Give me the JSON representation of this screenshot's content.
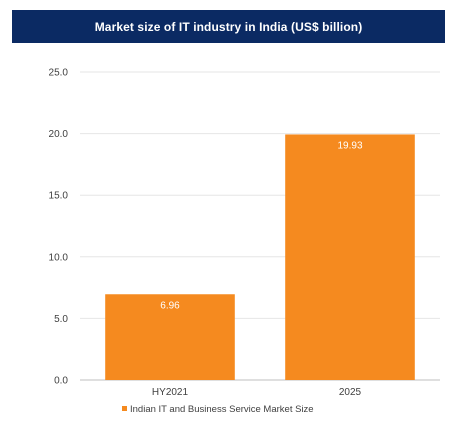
{
  "chart_data": {
    "type": "bar",
    "title": "Market size of IT industry in India (US$ billion)",
    "categories": [
      "HY2021",
      "2025"
    ],
    "series": [
      {
        "name": "Indian IT and Business Service Market Size",
        "values": [
          6.96,
          19.93
        ],
        "data_labels": [
          "6.96",
          "19.93"
        ],
        "color": "#f58a1f"
      }
    ],
    "xlabel": "",
    "ylabel": "",
    "ylim": [
      0,
      25
    ],
    "yticks": [
      "0.0",
      "5.0",
      "10.0",
      "15.0",
      "20.0",
      "25.0"
    ],
    "grid": true,
    "legend_position": "bottom",
    "title_bar_color": "#0b2a63"
  }
}
